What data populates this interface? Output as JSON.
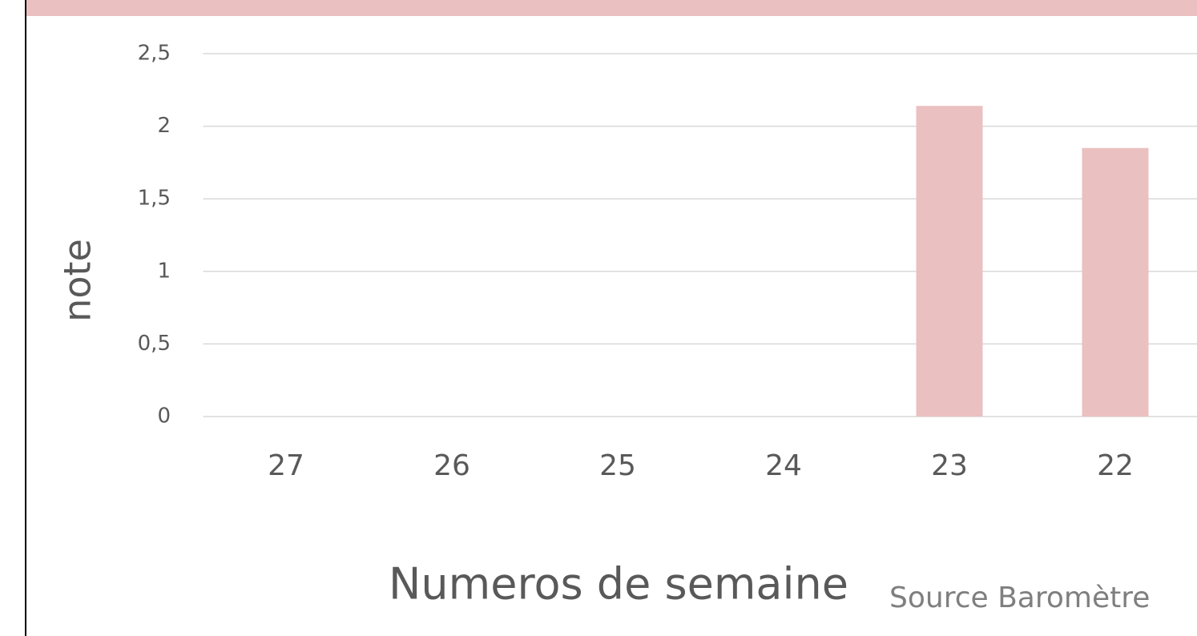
{
  "chart_data": {
    "type": "bar",
    "categories": [
      "27",
      "26",
      "25",
      "24",
      "23",
      "22"
    ],
    "values": [
      0,
      0,
      0,
      0,
      2.14,
      1.85
    ],
    "color": "#ebc0c0",
    "ylim": [
      0,
      2.5
    ],
    "yticks": [
      0,
      {
        "value": 0.5,
        "label": "0,5"
      },
      1,
      {
        "value": 1.5,
        "label": "1,5"
      },
      2,
      {
        "value": 2.5,
        "label": "2,5"
      }
    ],
    "grid": true,
    "y_label": "note",
    "x_label": "Numeros de semaine",
    "source": "Source Baromètre"
  }
}
